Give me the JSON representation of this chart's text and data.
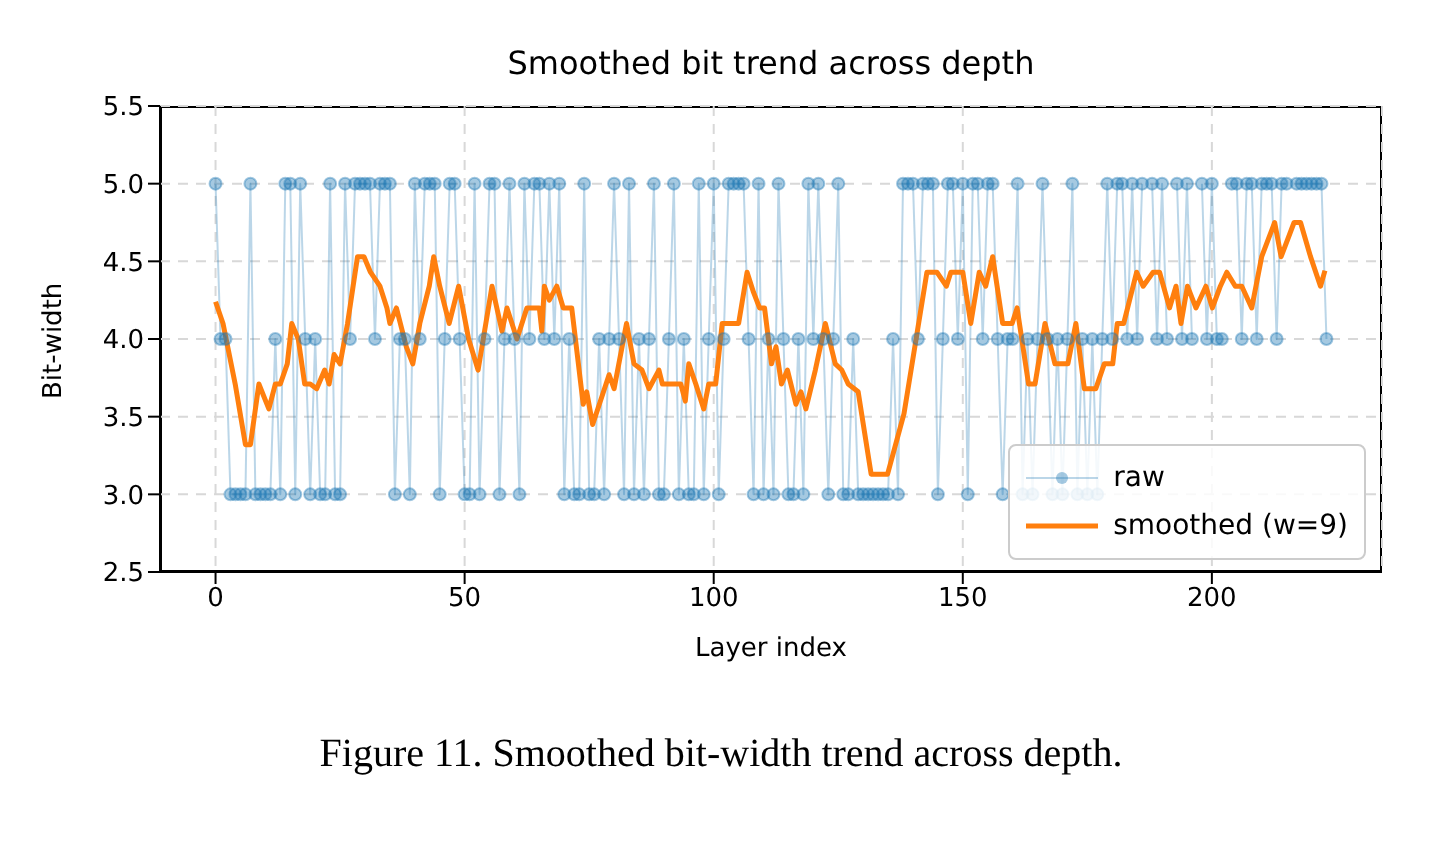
{
  "chart_data": {
    "type": "line",
    "title": "Smoothed bit trend across depth",
    "xlabel": "Layer index",
    "ylabel": "Bit-width",
    "xlim": [
      -11.15,
      234.15
    ],
    "xticks": [
      0,
      50,
      100,
      150,
      200
    ],
    "ylim": [
      2.5,
      5.5
    ],
    "yticks": [
      2.5,
      {
        "value": 3,
        "label": "3.0"
      },
      3.5,
      {
        "value": 4,
        "label": "4.0"
      },
      4.5,
      {
        "value": 5,
        "label": "5.0"
      },
      5.5
    ],
    "grid": true,
    "legend": "bottom right",
    "annotations": [
      "Figure 11. Smoothed bit-width trend across depth."
    ],
    "series": [
      {
        "name": "raw",
        "color": "#1f77b4",
        "marker": "circle",
        "x": [
          0,
          1,
          2,
          3,
          4,
          5,
          6,
          7,
          8,
          9,
          10,
          11,
          12,
          13,
          14,
          15,
          16,
          17,
          18,
          19,
          20,
          21,
          22,
          23,
          24,
          25,
          26,
          27,
          28,
          29,
          30,
          31,
          32,
          33,
          34,
          35,
          36,
          37,
          38,
          39,
          40,
          41,
          42,
          43,
          44,
          45,
          46,
          47,
          48,
          49,
          50,
          51,
          52,
          53,
          54,
          55,
          56,
          57,
          58,
          59,
          60,
          61,
          62,
          63,
          64,
          65,
          66,
          67,
          68,
          69,
          70,
          71,
          72,
          73,
          74,
          75,
          76,
          77,
          78,
          79,
          80,
          81,
          82,
          83,
          84,
          85,
          86,
          87,
          88,
          89,
          90,
          91,
          92,
          93,
          94,
          95,
          96,
          97,
          98,
          99,
          100,
          101,
          102,
          103,
          104,
          105,
          106,
          107,
          108,
          109,
          110,
          111,
          112,
          113,
          114,
          115,
          116,
          117,
          118,
          119,
          120,
          121,
          122,
          123,
          124,
          125,
          126,
          127,
          128,
          129,
          130,
          131,
          132,
          133,
          134,
          135,
          136,
          137,
          138,
          139,
          140,
          141,
          142,
          143,
          144,
          145,
          146,
          147,
          148,
          149,
          150,
          151,
          152,
          153,
          154,
          155,
          156,
          157,
          158,
          159,
          160,
          161,
          162,
          163,
          164,
          165,
          166,
          167,
          168,
          169,
          170,
          171,
          172,
          173,
          174,
          175,
          176,
          177,
          178,
          179,
          180,
          181,
          182,
          183,
          184,
          185,
          186,
          187,
          188,
          189,
          190,
          191,
          192,
          193,
          194,
          195,
          196,
          197,
          198,
          199,
          200,
          201,
          202,
          203,
          204,
          205,
          206,
          207,
          208,
          209,
          210,
          211,
          212,
          213,
          214,
          215,
          216,
          217,
          218,
          219,
          220,
          221,
          222,
          223
        ],
        "values": [
          5,
          4,
          4,
          3,
          3,
          3,
          3,
          5,
          3,
          3,
          3,
          3,
          4,
          3,
          5,
          5,
          3,
          5,
          4,
          3,
          4,
          3,
          3,
          5,
          3,
          3,
          5,
          4,
          5,
          5,
          5,
          5,
          4,
          5,
          5,
          5,
          3,
          4,
          4,
          3,
          5,
          4,
          5,
          5,
          5,
          3,
          4,
          5,
          5,
          4,
          3,
          3,
          5,
          3,
          4,
          5,
          5,
          3,
          4,
          5,
          4,
          3,
          5,
          4,
          5,
          5,
          4,
          5,
          4,
          5,
          3,
          4,
          3,
          3,
          5,
          3,
          3,
          4,
          3,
          4,
          5,
          4,
          3,
          5,
          3,
          4,
          3,
          4,
          5,
          3,
          3,
          4,
          5,
          3,
          4,
          3,
          3,
          5,
          3,
          4,
          5,
          3,
          4,
          5,
          5,
          5,
          5,
          4,
          3,
          5,
          3,
          4,
          3,
          5,
          4,
          3,
          3,
          4,
          3,
          5,
          4,
          5,
          4,
          3,
          4,
          5,
          3,
          3,
          4,
          3,
          3,
          3,
          3,
          3,
          3,
          3,
          4,
          3,
          5,
          5,
          5,
          4,
          5,
          5,
          5,
          3,
          4,
          5,
          5,
          4,
          5,
          3,
          5,
          5,
          4,
          5,
          5,
          4,
          3,
          4,
          4,
          5,
          3,
          4,
          3,
          4,
          5,
          4,
          3,
          4,
          3,
          4,
          5,
          3,
          4,
          3,
          4,
          3,
          4,
          5,
          4,
          5,
          5,
          4,
          5,
          4,
          5,
          null,
          5,
          4,
          5,
          4,
          null,
          5,
          4,
          5,
          4,
          null,
          5,
          4,
          5,
          4,
          4,
          null,
          5,
          5,
          4,
          5,
          5,
          4,
          5,
          5,
          5,
          4,
          5,
          5,
          null,
          5,
          5,
          5,
          5,
          5,
          5,
          4
        ]
      },
      {
        "name": "smoothed (w=9)",
        "color": "#ff7f0e",
        "marker": "none",
        "x": [
          0,
          1.5,
          4,
          6,
          7,
          8.7,
          10.7,
          12,
          13,
          14.4,
          15.3,
          16.6,
          17.9,
          19,
          20.3,
          21.9,
          22.8,
          23.8,
          25,
          26.5,
          28.5,
          29.8,
          31.1,
          33,
          34.4,
          35,
          36.3,
          38.3,
          39.6,
          41,
          42.9,
          43.8,
          45,
          46.9,
          48.8,
          50.8,
          52.7,
          55.5,
          57.5,
          58.5,
          60.5,
          62.5,
          65,
          65.5,
          66,
          67,
          68.5,
          69.8,
          71.5,
          73.8,
          74.5,
          75.7,
          79,
          80,
          82.5,
          84,
          85.6,
          87,
          89,
          89.7,
          93.4,
          94.3,
          95,
          96.4,
          98,
          99,
          100.4,
          101.7,
          105,
          106.7,
          108,
          109.2,
          110.2,
          111.6,
          112.5,
          113.6,
          114.8,
          116.5,
          117.5,
          118.5,
          120.4,
          122.4,
          124.4,
          125.7,
          127,
          129,
          131.6,
          134.9,
          138.2,
          142.8,
          144.8,
          146.7,
          147.6,
          150,
          151.6,
          153.3,
          154.6,
          156,
          158,
          159.9,
          160.9,
          163.2,
          164.5,
          166.5,
          168.5,
          171.1,
          172.7,
          174.4,
          176.7,
          178.4,
          180.1,
          181,
          182.3,
          184.9,
          186.2,
          188.2,
          189.5,
          191.5,
          192.8,
          193.8,
          195.1,
          196.8,
          198.8,
          200.1,
          201.7,
          203,
          204.7,
          206,
          208,
          210,
          212.6,
          213.9,
          216.5,
          217.8,
          219.8,
          221.8,
          222.7
        ],
        "values": [
          4.24,
          4.1,
          3.7,
          3.32,
          3.32,
          3.71,
          3.55,
          3.71,
          3.71,
          3.84,
          4.1,
          4.0,
          3.71,
          3.71,
          3.68,
          3.8,
          3.71,
          3.9,
          3.84,
          4.1,
          4.53,
          4.53,
          4.43,
          4.34,
          4.2,
          4.1,
          4.2,
          3.95,
          3.84,
          4.1,
          4.34,
          4.53,
          4.34,
          4.1,
          4.34,
          4.0,
          3.8,
          4.34,
          4.05,
          4.2,
          4.0,
          4.2,
          4.2,
          4.05,
          4.34,
          4.25,
          4.34,
          4.2,
          4.2,
          3.58,
          3.66,
          3.45,
          3.77,
          3.68,
          4.1,
          3.84,
          3.8,
          3.68,
          3.8,
          3.71,
          3.71,
          3.6,
          3.84,
          3.71,
          3.55,
          3.71,
          3.71,
          4.1,
          4.1,
          4.43,
          4.3,
          4.2,
          4.2,
          3.84,
          3.95,
          3.71,
          3.8,
          3.58,
          3.66,
          3.55,
          3.8,
          4.1,
          3.84,
          3.8,
          3.71,
          3.66,
          3.13,
          3.13,
          3.52,
          4.43,
          4.43,
          4.34,
          4.43,
          4.43,
          4.1,
          4.43,
          4.34,
          4.53,
          4.1,
          4.1,
          4.2,
          3.71,
          3.71,
          4.1,
          3.84,
          3.84,
          4.1,
          3.68,
          3.68,
          3.84,
          3.84,
          4.1,
          4.1,
          4.43,
          4.34,
          4.43,
          4.43,
          4.2,
          4.34,
          4.1,
          4.34,
          4.2,
          4.34,
          4.2,
          4.34,
          4.43,
          4.34,
          4.34,
          4.2,
          4.53,
          4.75,
          4.53,
          4.75,
          4.75,
          4.53,
          4.34,
          4.44
        ]
      }
    ]
  }
}
